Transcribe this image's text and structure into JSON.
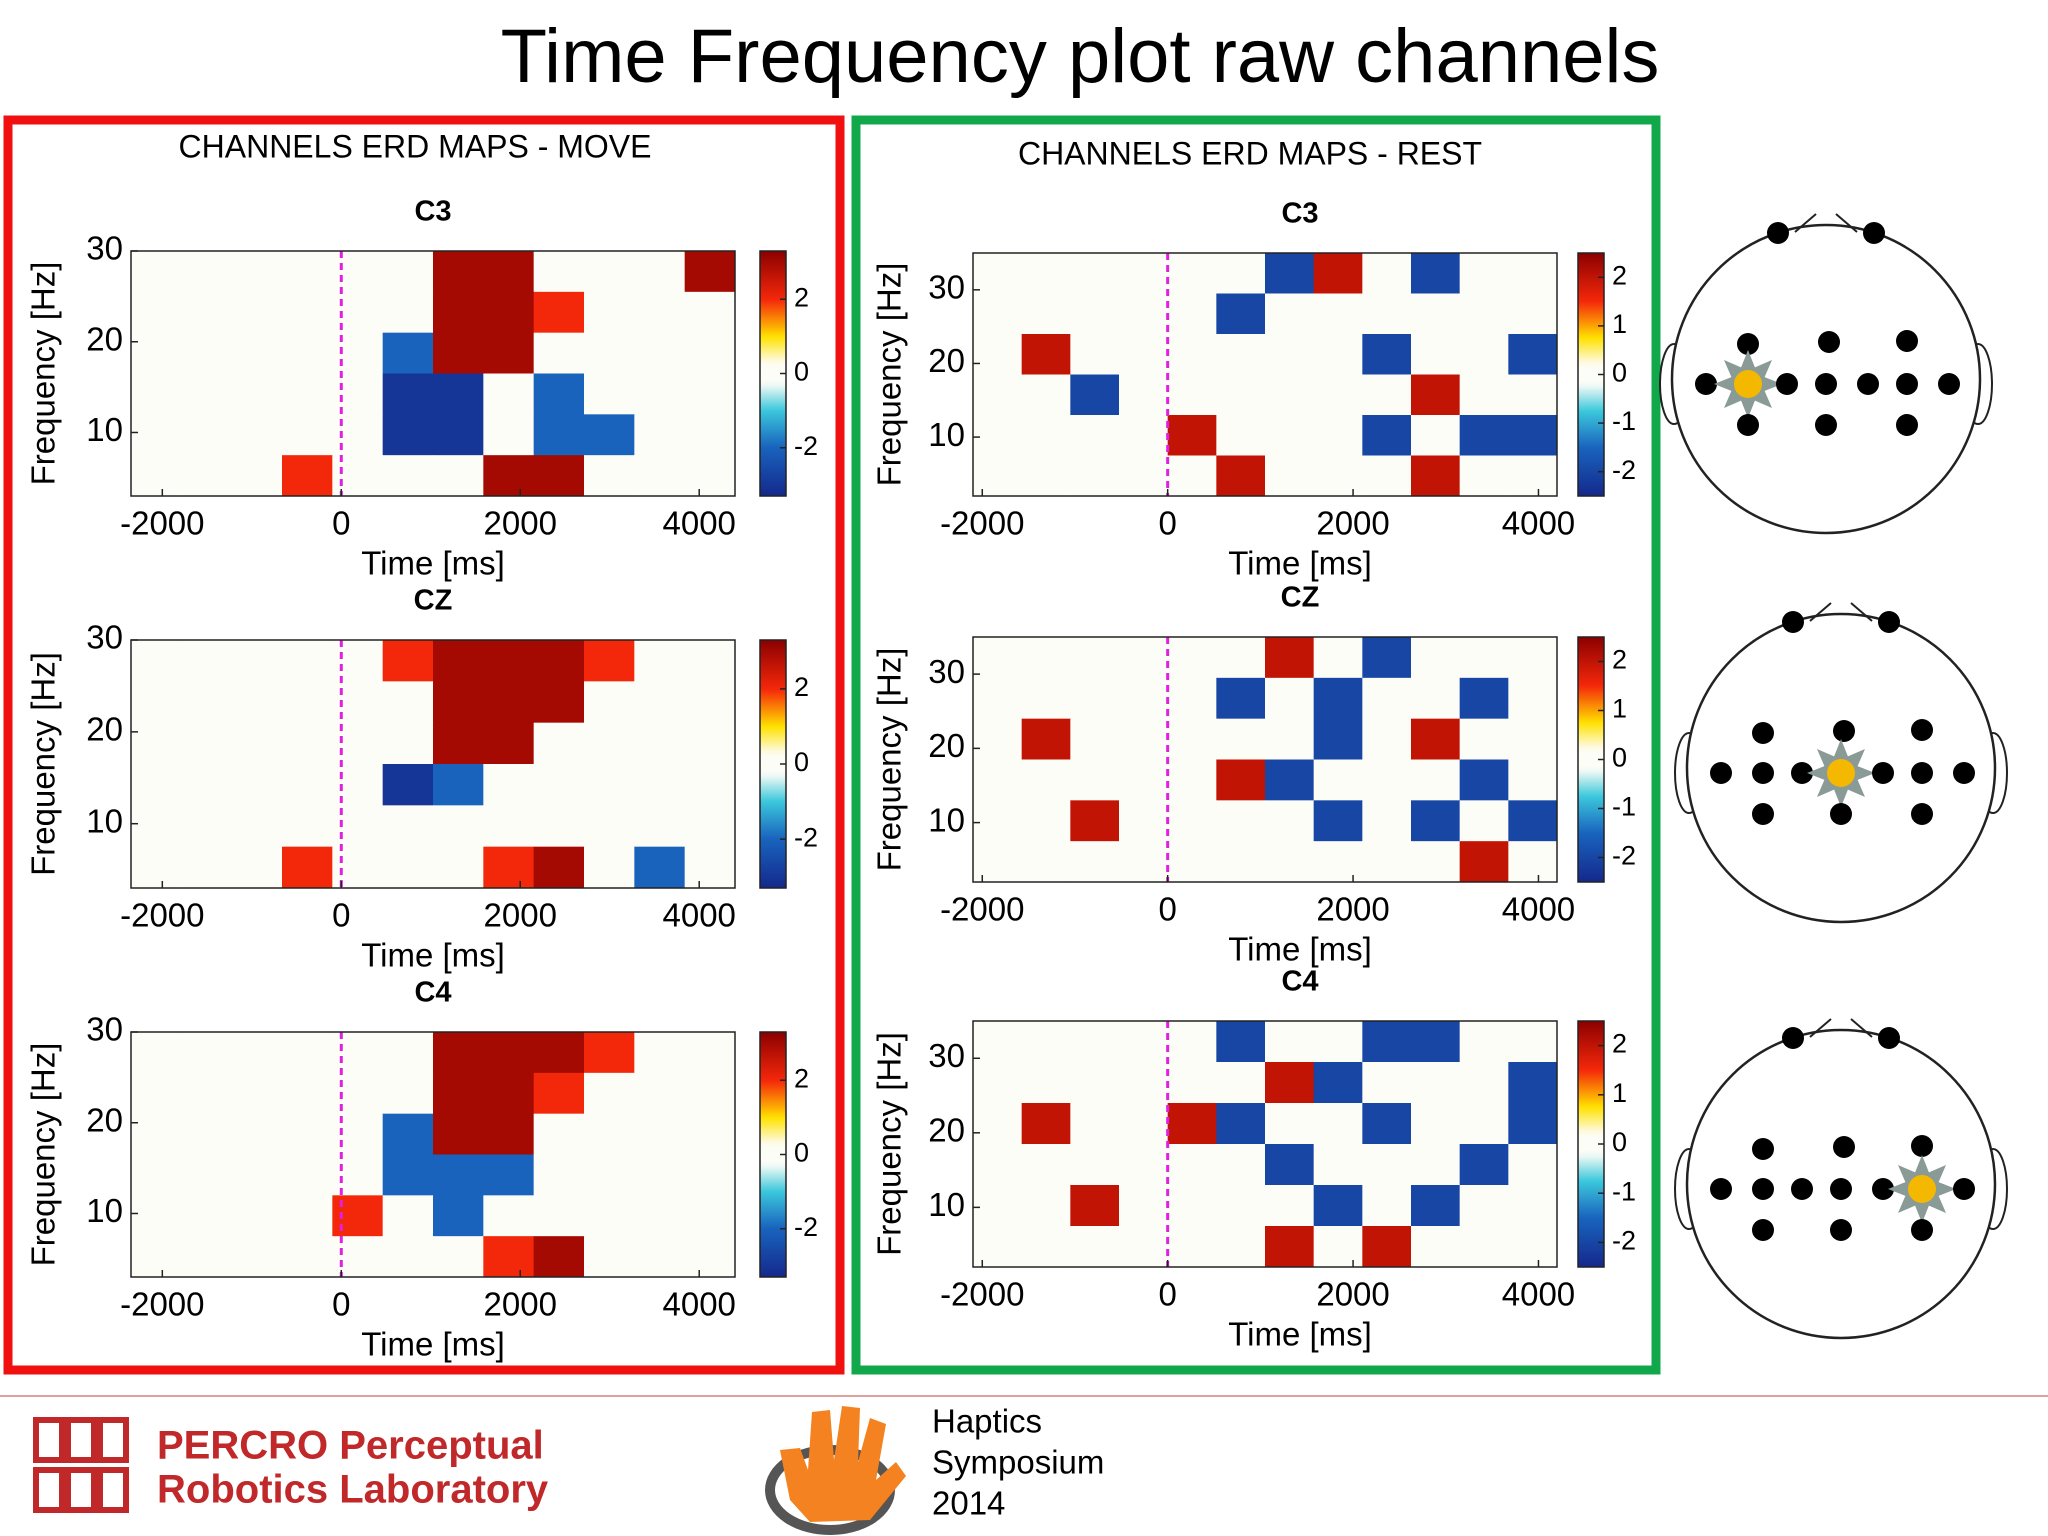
{
  "title": "Time Frequency plot raw channels",
  "panels": [
    {
      "title": "CHANNELS ERD MAPS - MOVE"
    },
    {
      "title": "CHANNELS ERD MAPS - REST"
    }
  ],
  "footer": {
    "lab_line1": "PERCRO Perceptual",
    "lab_line2": "Robotics Laboratory",
    "event": [
      "Haptics",
      "Symposium",
      "2014"
    ]
  },
  "chart_data": [
    {
      "type": "heatmap",
      "title": "C3",
      "xlabel": "Time [ms]",
      "ylabel": "Frequency [Hz]",
      "xlim": [
        -2350,
        4400
      ],
      "xticks": [
        -2000,
        0,
        2000,
        4000
      ],
      "ylim": [
        3,
        30
      ],
      "yticks": [
        10,
        20,
        30
      ],
      "clim": [
        -3.3,
        3.3
      ],
      "cticks": [
        -2,
        0,
        2
      ],
      "vline": 0,
      "vline_color": "#e020e0",
      "colormap": "jet",
      "values": [
        [
          0,
          0,
          0,
          0,
          0,
          0,
          3,
          3,
          0,
          0,
          0,
          3
        ],
        [
          0,
          0,
          0,
          0,
          0,
          0,
          3,
          3,
          2,
          0,
          0,
          0
        ],
        [
          0,
          0,
          0,
          0,
          0,
          -2,
          3,
          3,
          0,
          0,
          0,
          0
        ],
        [
          0,
          0,
          0,
          0,
          0,
          -3,
          -3,
          0,
          -2,
          0,
          0,
          0
        ],
        [
          0,
          0,
          0,
          0,
          0,
          -3,
          -3,
          0,
          -2,
          -2,
          0,
          0
        ],
        [
          0,
          0,
          0,
          2,
          0,
          0,
          0,
          3,
          3,
          0,
          0,
          0
        ]
      ]
    },
    {
      "type": "heatmap",
      "title": "CZ",
      "xlabel": "Time [ms]",
      "ylabel": "Frequency [Hz]",
      "xlim": [
        -2350,
        4400
      ],
      "xticks": [
        -2000,
        0,
        2000,
        4000
      ],
      "ylim": [
        3,
        30
      ],
      "yticks": [
        10,
        20,
        30
      ],
      "clim": [
        -3.3,
        3.3
      ],
      "cticks": [
        -2,
        0,
        2
      ],
      "vline": 0,
      "vline_color": "#e020e0",
      "colormap": "jet",
      "values": [
        [
          0,
          0,
          0,
          0,
          0,
          2,
          3,
          3,
          3,
          2,
          0,
          0
        ],
        [
          0,
          0,
          0,
          0,
          0,
          0,
          3,
          3,
          3,
          0,
          0,
          0
        ],
        [
          0,
          0,
          0,
          0,
          0,
          0,
          3,
          3,
          0,
          0,
          0,
          0
        ],
        [
          0,
          0,
          0,
          0,
          0,
          -3,
          -2,
          0,
          0,
          0,
          0,
          0
        ],
        [
          0,
          0,
          0,
          0,
          0,
          0,
          0,
          0,
          0,
          0,
          0,
          0
        ],
        [
          0,
          0,
          0,
          2,
          0,
          0,
          0,
          2,
          3,
          0,
          -2,
          0
        ]
      ]
    },
    {
      "type": "heatmap",
      "title": "C4",
      "xlabel": "Time [ms]",
      "ylabel": "Frequency [Hz]",
      "xlim": [
        -2350,
        4400
      ],
      "xticks": [
        -2000,
        0,
        2000,
        4000
      ],
      "ylim": [
        3,
        30
      ],
      "yticks": [
        10,
        20,
        30
      ],
      "clim": [
        -3.3,
        3.3
      ],
      "cticks": [
        -2,
        0,
        2
      ],
      "vline": 0,
      "vline_color": "#e020e0",
      "colormap": "jet",
      "values": [
        [
          0,
          0,
          0,
          0,
          0,
          0,
          3,
          3,
          3,
          2,
          0,
          0
        ],
        [
          0,
          0,
          0,
          0,
          0,
          0,
          3,
          3,
          2,
          0,
          0,
          0
        ],
        [
          0,
          0,
          0,
          0,
          0,
          -2,
          3,
          3,
          0,
          0,
          0,
          0
        ],
        [
          0,
          0,
          0,
          0,
          0,
          -2,
          -2,
          -2,
          0,
          0,
          0,
          0
        ],
        [
          0,
          0,
          0,
          0,
          2,
          0,
          -2,
          0,
          0,
          0,
          0,
          0
        ],
        [
          0,
          0,
          0,
          0,
          0,
          0,
          0,
          2,
          3,
          0,
          0,
          0
        ]
      ]
    },
    {
      "type": "heatmap",
      "title": "C3",
      "xlabel": "Time [ms]",
      "ylabel": "Frequency [Hz]",
      "xlim": [
        -2100,
        4200
      ],
      "xticks": [
        -2000,
        0,
        2000,
        4000
      ],
      "ylim": [
        2,
        35
      ],
      "yticks": [
        10,
        20,
        30
      ],
      "clim": [
        -2.5,
        2.5
      ],
      "cticks": [
        -2,
        -1,
        0,
        1,
        2
      ],
      "vline": 0,
      "vline_color": "#e020e0",
      "colormap": "jet",
      "values": [
        [
          0,
          0,
          0,
          0,
          0,
          0,
          -2,
          2,
          0,
          -2,
          0,
          0
        ],
        [
          0,
          0,
          0,
          0,
          0,
          -2,
          0,
          0,
          0,
          0,
          0,
          0
        ],
        [
          0,
          2,
          0,
          0,
          0,
          0,
          0,
          0,
          -2,
          0,
          0,
          -2
        ],
        [
          0,
          0,
          -2,
          0,
          0,
          0,
          0,
          0,
          0,
          2,
          0,
          0
        ],
        [
          0,
          0,
          0,
          0,
          2,
          0,
          0,
          0,
          -2,
          0,
          -2,
          -2
        ],
        [
          0,
          0,
          0,
          0,
          0,
          2,
          0,
          0,
          0,
          2,
          0,
          0
        ]
      ]
    },
    {
      "type": "heatmap",
      "title": "CZ",
      "xlabel": "Time [ms]",
      "ylabel": "Frequency [Hz]",
      "xlim": [
        -2100,
        4200
      ],
      "xticks": [
        -2000,
        0,
        2000,
        4000
      ],
      "ylim": [
        2,
        35
      ],
      "yticks": [
        10,
        20,
        30
      ],
      "clim": [
        -2.5,
        2.5
      ],
      "cticks": [
        -2,
        -1,
        0,
        1,
        2
      ],
      "vline": 0,
      "vline_color": "#e020e0",
      "colormap": "jet",
      "values": [
        [
          0,
          0,
          0,
          0,
          0,
          0,
          2,
          0,
          -2,
          0,
          0,
          0
        ],
        [
          0,
          0,
          0,
          0,
          0,
          -2,
          0,
          -2,
          0,
          0,
          -2,
          0
        ],
        [
          0,
          2,
          0,
          0,
          0,
          0,
          0,
          -2,
          0,
          2,
          0,
          0
        ],
        [
          0,
          0,
          0,
          0,
          0,
          2,
          -2,
          0,
          0,
          0,
          -2,
          0
        ],
        [
          0,
          0,
          2,
          0,
          0,
          0,
          0,
          -2,
          0,
          -2,
          0,
          -2
        ],
        [
          0,
          0,
          0,
          0,
          0,
          0,
          0,
          0,
          0,
          0,
          2,
          0
        ]
      ]
    },
    {
      "type": "heatmap",
      "title": "C4",
      "xlabel": "Time [ms]",
      "ylabel": "Frequency [Hz]",
      "xlim": [
        -2100,
        4200
      ],
      "xticks": [
        -2000,
        0,
        2000,
        4000
      ],
      "ylim": [
        2,
        35
      ],
      "yticks": [
        10,
        20,
        30
      ],
      "clim": [
        -2.5,
        2.5
      ],
      "cticks": [
        -2,
        -1,
        0,
        1,
        2
      ],
      "vline": 0,
      "vline_color": "#e020e0",
      "colormap": "jet",
      "values": [
        [
          0,
          0,
          0,
          0,
          0,
          -2,
          0,
          0,
          -2,
          -2,
          0,
          0
        ],
        [
          0,
          0,
          0,
          0,
          0,
          0,
          2,
          -2,
          0,
          0,
          0,
          -2
        ],
        [
          0,
          2,
          0,
          0,
          2,
          -2,
          0,
          0,
          -2,
          0,
          0,
          -2
        ],
        [
          0,
          0,
          0,
          0,
          0,
          0,
          -2,
          0,
          0,
          0,
          -2,
          0
        ],
        [
          0,
          0,
          2,
          0,
          0,
          0,
          0,
          -2,
          0,
          -2,
          0,
          0
        ],
        [
          0,
          0,
          0,
          0,
          0,
          0,
          2,
          0,
          2,
          0,
          0,
          0
        ]
      ]
    }
  ]
}
